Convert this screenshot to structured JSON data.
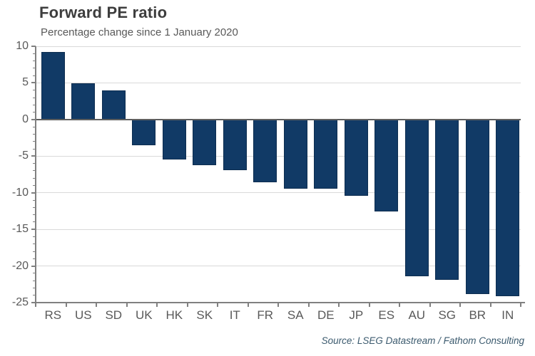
{
  "chart_data": {
    "type": "bar",
    "title": "Forward PE ratio",
    "subtitle": "Percentage change since 1 January 2020",
    "source": "Source: LSEG Datastream / Fathom Consulting",
    "categories": [
      "RS",
      "US",
      "SD",
      "UK",
      "HK",
      "SK",
      "IT",
      "FR",
      "SA",
      "DE",
      "JP",
      "ES",
      "AU",
      "SG",
      "BR",
      "IN"
    ],
    "values": [
      9.2,
      4.9,
      4.0,
      -3.5,
      -5.5,
      -6.2,
      -6.9,
      -8.6,
      -9.4,
      -9.4,
      -10.4,
      -12.6,
      -21.4,
      -21.9,
      -23.8,
      -24.1
    ],
    "xlabel": "",
    "ylabel": "",
    "ylim": [
      -25,
      10
    ],
    "yticks": [
      10,
      5,
      0,
      -5,
      -10,
      -15,
      -20,
      -25
    ],
    "y_minor_tick_step": 1,
    "grid": true,
    "legend": "none",
    "colors": {
      "bar": "#113a66",
      "bar_border": "#0d2d50",
      "title": "#3d3d3d",
      "subtitle": "#595959",
      "axis_labels": "#595959",
      "axis_line": "#808080",
      "zero_line": "#5f5f5f",
      "gridline": "#d9d9d9",
      "source": "#3b5a6e",
      "background": "#ffffff"
    }
  }
}
